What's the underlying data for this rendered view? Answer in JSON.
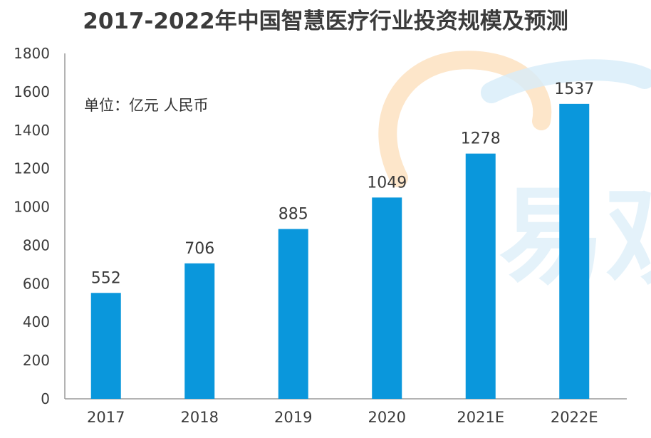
{
  "chart_data": {
    "type": "bar",
    "title": "2017-2022年中国智慧医疗行业投资规模及预测",
    "unit_note": "单位：亿元 人民币",
    "categories": [
      "2017",
      "2018",
      "2019",
      "2020",
      "2021E",
      "2022E"
    ],
    "values": [
      552,
      706,
      885,
      1049,
      1278,
      1537
    ],
    "data_labels": [
      "552",
      "706",
      "885",
      "1049",
      "1278",
      "1537"
    ],
    "y_ticks": [
      "0",
      "200",
      "400",
      "600",
      "800",
      "1000",
      "1200",
      "1400",
      "1600",
      "1800"
    ],
    "ylim": [
      0,
      1800
    ],
    "xlabel": "",
    "ylabel": "",
    "grid": false,
    "legend": "none",
    "colors": {
      "bar": "#0a97dc",
      "axis": "#9a9a9a",
      "watermark_orange": "#fde3c4",
      "watermark_blue": "#cfe8f7"
    }
  },
  "watermark": {
    "text": "易观",
    "logo": "a"
  }
}
